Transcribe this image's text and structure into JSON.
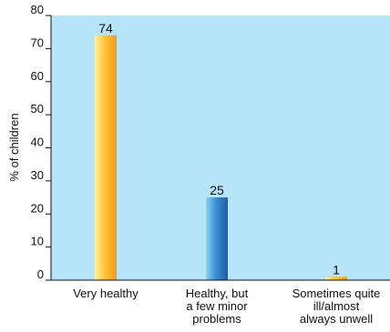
{
  "chart_data": {
    "type": "bar",
    "ylabel": "% of children",
    "ylim": [
      0,
      80
    ],
    "yticks": [
      0,
      10,
      20,
      30,
      40,
      50,
      60,
      70,
      80
    ],
    "grid": false,
    "categories": [
      [
        "Very healthy"
      ],
      [
        "Healthy, but",
        "a few minor",
        "problems"
      ],
      [
        "Sometimes quite",
        "ill/almost",
        "always unwell"
      ]
    ],
    "values": [
      74,
      25,
      1
    ],
    "data_labels": [
      "74",
      "25",
      "1"
    ],
    "colors": {
      "plot_background": "#b6e4f8",
      "bar_orange_light": "#fff0a0",
      "bar_orange_dark": "#f59a1c",
      "bar_blue_light": "#8fd0f0",
      "bar_blue_dark": "#1f5ca8"
    }
  }
}
